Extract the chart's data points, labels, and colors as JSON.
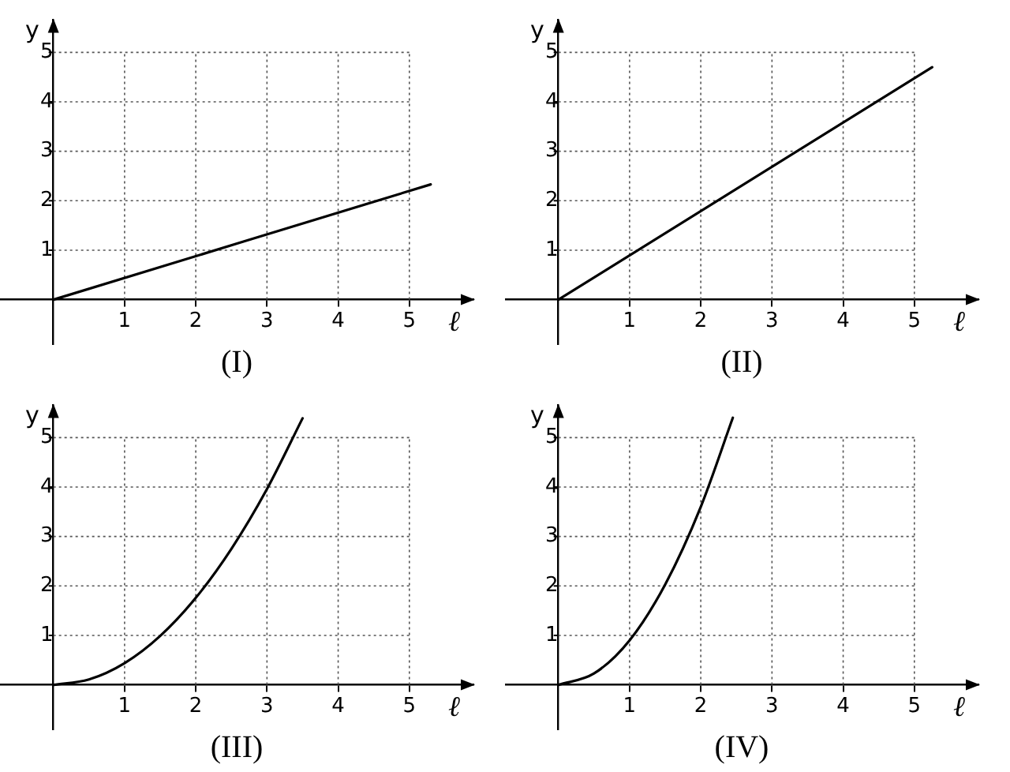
{
  "chart_data": [
    {
      "type": "line",
      "title": "(I)",
      "xlabel": "ℓ",
      "ylabel": "y",
      "xlim": [
        -0.75,
        5.9
      ],
      "ylim": [
        -0.9,
        5.65
      ],
      "xticks": [
        1,
        2,
        3,
        4,
        5
      ],
      "yticks": [
        1,
        2,
        3,
        4,
        5
      ],
      "grid": true,
      "legend": false,
      "marker": "none",
      "line_style": "solid",
      "series": [
        {
          "color": "#000000",
          "x": [
            0,
            5.3
          ],
          "values": [
            0,
            2.33
          ]
        }
      ]
    },
    {
      "type": "line",
      "title": "(II)",
      "xlabel": "ℓ",
      "ylabel": "y",
      "xlim": [
        -0.75,
        5.9
      ],
      "ylim": [
        -0.9,
        5.65
      ],
      "xticks": [
        1,
        2,
        3,
        4,
        5
      ],
      "yticks": [
        1,
        2,
        3,
        4,
        5
      ],
      "grid": true,
      "legend": false,
      "marker": "none",
      "line_style": "solid",
      "series": [
        {
          "color": "#000000",
          "x": [
            0,
            5.25
          ],
          "values": [
            0,
            4.7
          ]
        }
      ]
    },
    {
      "type": "line",
      "title": "(III)",
      "xlabel": "ℓ",
      "ylabel": "y",
      "xlim": [
        -0.75,
        5.9
      ],
      "ylim": [
        -0.9,
        5.65
      ],
      "xticks": [
        1,
        2,
        3,
        4,
        5
      ],
      "yticks": [
        1,
        2,
        3,
        4,
        5
      ],
      "grid": true,
      "legend": false,
      "marker": "none",
      "line_style": "solid",
      "series": [
        {
          "color": "#000000",
          "x": [
            0,
            0.5,
            1,
            1.5,
            2,
            2.5,
            3,
            3.5
          ],
          "values": [
            0,
            0.11,
            0.44,
            0.99,
            1.76,
            2.75,
            3.96,
            5.39
          ]
        }
      ]
    },
    {
      "type": "line",
      "title": "(IV)",
      "xlabel": "ℓ",
      "ylabel": "y",
      "xlim": [
        -0.75,
        5.9
      ],
      "ylim": [
        -0.9,
        5.65
      ],
      "xticks": [
        1,
        2,
        3,
        4,
        5
      ],
      "yticks": [
        1,
        2,
        3,
        4,
        5
      ],
      "grid": true,
      "legend": false,
      "marker": "none",
      "line_style": "solid",
      "series": [
        {
          "color": "#000000",
          "x": [
            0,
            0.5,
            1,
            1.5,
            2,
            2.45
          ],
          "values": [
            0,
            0.23,
            0.9,
            2.03,
            3.6,
            5.4
          ]
        }
      ]
    }
  ]
}
